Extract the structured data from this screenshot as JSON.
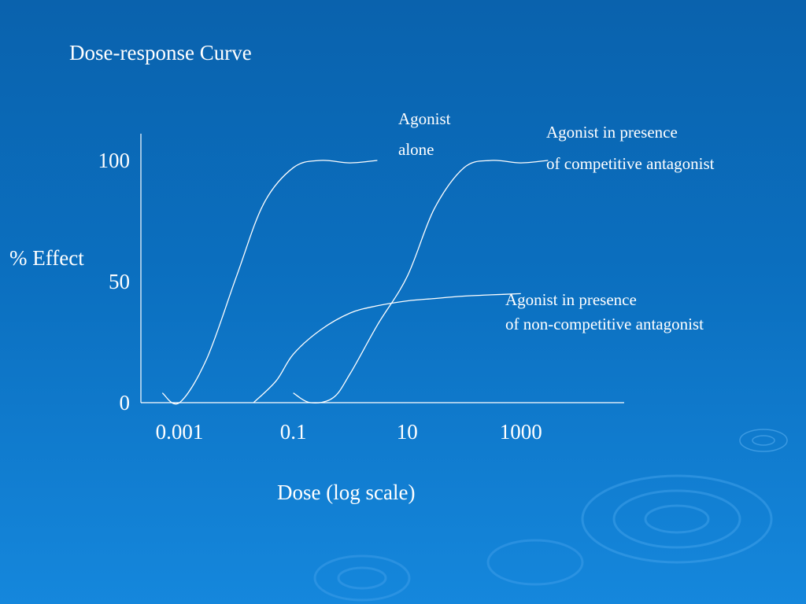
{
  "chart_data": {
    "type": "line",
    "title": "Dose-response Curve",
    "xlabel": "Dose (log scale)",
    "ylabel": "% Effect",
    "x_scale": "log",
    "x_ticks": [
      "0.001",
      "0.1",
      "10",
      "1000"
    ],
    "y_ticks": [
      "0",
      "50",
      "100"
    ],
    "ylim": [
      0,
      100
    ],
    "grid": false,
    "series": [
      {
        "label_lines": [
          "Agonist",
          "alone"
        ],
        "x": [
          0.0005,
          0.001,
          0.003,
          0.01,
          0.03,
          0.1,
          0.3,
          1,
          3
        ],
        "y": [
          4,
          0,
          18,
          52,
          82,
          97,
          100,
          99,
          100
        ]
      },
      {
        "label_lines": [
          "Agonist in presence",
          "of competitive antagonist"
        ],
        "x": [
          0.1,
          0.2,
          0.5,
          1,
          3,
          10,
          30,
          100,
          300,
          1000,
          3000
        ],
        "y": [
          4,
          0,
          2,
          12,
          32,
          52,
          80,
          97,
          100,
          99,
          100
        ]
      },
      {
        "label_lines": [
          "Agonist in presence",
          "of non-competitive antagonist"
        ],
        "x": [
          0.02,
          0.05,
          0.1,
          0.3,
          1,
          3,
          10,
          30,
          100,
          300,
          1000
        ],
        "y": [
          0,
          9,
          20,
          30,
          37,
          40,
          42,
          43,
          44,
          44.5,
          45
        ]
      }
    ]
  }
}
